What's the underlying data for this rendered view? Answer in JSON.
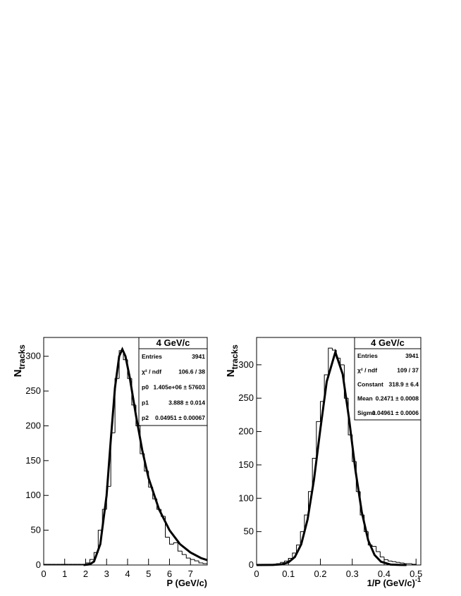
{
  "chart_data": [
    {
      "type": "histogram",
      "bins": [
        0,
        0.2,
        0.4,
        0.6,
        0.8,
        1.0,
        1.2,
        1.4,
        1.6,
        1.8,
        2.0,
        2.2,
        2.4,
        2.6,
        2.8,
        3.0,
        3.2,
        3.4,
        3.6,
        3.8,
        4.0,
        4.2,
        4.4,
        4.6,
        4.8,
        5.0,
        5.2,
        5.4,
        5.6,
        5.8,
        6.0,
        6.2,
        6.4,
        6.6,
        6.8,
        7.0,
        7.2,
        7.4,
        7.6,
        7.8
      ],
      "values": [
        1,
        1,
        1,
        1,
        1,
        1,
        1,
        1,
        1,
        1,
        3,
        8,
        18,
        50,
        80,
        113,
        190,
        268,
        308,
        295,
        268,
        230,
        200,
        160,
        135,
        112,
        95,
        80,
        70,
        40,
        30,
        32,
        20,
        15,
        10,
        8,
        6,
        3,
        2
      ],
      "fit": {
        "x": [
          1.9,
          2.2,
          2.4,
          2.7,
          3.0,
          3.2,
          3.4,
          3.6,
          3.75,
          3.9,
          4.1,
          4.4,
          4.7,
          5.0,
          5.5,
          6.0,
          6.5,
          7.0,
          7.5,
          7.8
        ],
        "values": [
          0,
          1,
          5,
          30,
          100,
          180,
          255,
          300,
          310,
          300,
          270,
          215,
          165,
          125,
          80,
          50,
          30,
          18,
          10,
          7
        ]
      },
      "xlim": [
        0,
        7.8
      ],
      "ylim": [
        0,
        327
      ],
      "xticks": [
        0,
        1,
        2,
        3,
        4,
        5,
        6,
        7
      ],
      "yticks": [
        0,
        50,
        100,
        150,
        200,
        250,
        300
      ],
      "xlabel": "P (GeV/c)",
      "ylabel": "N",
      "ylabel_sub": "tracks",
      "color": "#000000",
      "stats": {
        "title": "4 GeV/c",
        "rows": [
          [
            "Entries",
            "3941"
          ],
          [
            "χ² / ndf",
            "106.6 / 38"
          ],
          [
            "p0",
            "1.405e+06 ± 57603"
          ],
          [
            "p1",
            "3.888 ± 0.014"
          ],
          [
            "p2",
            "0.04951 ± 0.00067"
          ]
        ]
      }
    },
    {
      "type": "histogram",
      "bins": [
        0,
        0.0125,
        0.025,
        0.0375,
        0.05,
        0.0625,
        0.075,
        0.0875,
        0.1,
        0.1125,
        0.125,
        0.1375,
        0.15,
        0.1625,
        0.175,
        0.1875,
        0.2,
        0.2125,
        0.225,
        0.2375,
        0.25,
        0.2625,
        0.275,
        0.2875,
        0.3,
        0.3125,
        0.325,
        0.3375,
        0.35,
        0.3625,
        0.375,
        0.3875,
        0.4,
        0.4125,
        0.425,
        0.4375,
        0.45,
        0.4625,
        0.475,
        0.4875,
        0.5
      ],
      "values": [
        0,
        0,
        0,
        0,
        1,
        2,
        4,
        6,
        10,
        18,
        30,
        50,
        75,
        110,
        160,
        215,
        245,
        285,
        325,
        322,
        310,
        300,
        250,
        195,
        155,
        110,
        75,
        50,
        30,
        28,
        20,
        12,
        8,
        6,
        5,
        4,
        3,
        2,
        2,
        1
      ],
      "fit": {
        "x": [
          0,
          0.05,
          0.08,
          0.1,
          0.12,
          0.14,
          0.16,
          0.18,
          0.2,
          0.22,
          0.247,
          0.27,
          0.29,
          0.31,
          0.33,
          0.35,
          0.37,
          0.39,
          0.42,
          0.45,
          0.47
        ],
        "values": [
          0,
          0.1,
          1.1,
          4,
          12,
          31,
          68.5,
          128,
          204,
          275,
          319,
          286,
          219,
          142,
          79,
          37,
          15,
          5,
          0.7,
          0.1,
          0
        ]
      },
      "xlim": [
        0,
        0.515
      ],
      "ylim": [
        0,
        341
      ],
      "xticks": [
        0,
        0.1,
        0.2,
        0.3,
        0.4,
        0.5
      ],
      "yticks": [
        0,
        50,
        100,
        150,
        200,
        250,
        300
      ],
      "xlabel": "1/P (GeV/c)",
      "xlabel_sup": "-1",
      "ylabel": "N",
      "ylabel_sub": "tracks",
      "color": "#000000",
      "stats": {
        "title": "4 GeV/c",
        "rows": [
          [
            "Entries",
            "3941"
          ],
          [
            "χ² / ndf",
            "109 / 37"
          ],
          [
            "Constant",
            "318.9 ± 6.4"
          ],
          [
            "Mean",
            "0.2471 ± 0.0008"
          ],
          [
            "Sigma",
            "0.04961 ± 0.0006"
          ]
        ]
      }
    }
  ]
}
